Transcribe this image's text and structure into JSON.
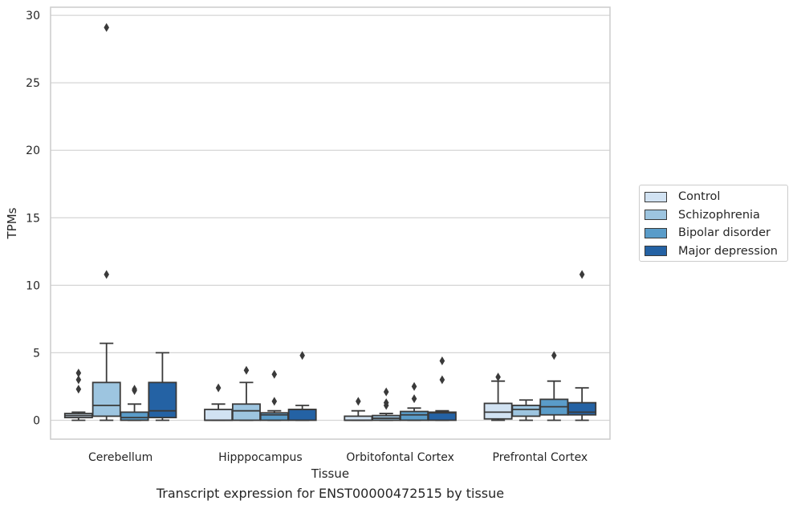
{
  "caption": "Transcript expression for ENST00000472515 by tissue",
  "colors": {
    "Control": "#d1e2f2",
    "Schizophrenia": "#9dc5e0",
    "Bipolar disorder": "#5a9cc9",
    "Major depression": "#2462a4",
    "grid": "#d5d5d5",
    "spine": "#cccccc",
    "line": "#3a3a3a"
  },
  "chart_data": {
    "type": "box",
    "xlabel": "Tissue",
    "ylabel": "TPMs",
    "ylim": [
      -1.4,
      30.6
    ],
    "yticks": [
      0,
      5,
      10,
      15,
      20,
      25,
      30
    ],
    "categories": [
      "Cerebellum",
      "Hipppocampus",
      "Orbitofontal Cortex",
      "Prefrontal Cortex"
    ],
    "grid": "horizontal",
    "legend_position": "right",
    "series": [
      {
        "name": "Control",
        "boxes": [
          {
            "category": "Cerebellum",
            "whisker_low": 0.0,
            "q1": 0.2,
            "median": 0.35,
            "q3": 0.5,
            "whisker_high": 0.6,
            "outliers": [
              2.3,
              3.0,
              3.5
            ]
          },
          {
            "category": "Hipppocampus",
            "whisker_low": 0.0,
            "q1": 0.0,
            "median": 0.0,
            "q3": 0.8,
            "whisker_high": 1.2,
            "outliers": [
              2.4
            ]
          },
          {
            "category": "Orbitofontal Cortex",
            "whisker_low": 0.0,
            "q1": 0.0,
            "median": 0.0,
            "q3": 0.3,
            "whisker_high": 0.7,
            "outliers": [
              1.4
            ]
          },
          {
            "category": "Prefrontal Cortex",
            "whisker_low": 0.0,
            "q1": 0.1,
            "median": 0.6,
            "q3": 1.25,
            "whisker_high": 2.9,
            "outliers": [
              3.2
            ]
          }
        ]
      },
      {
        "name": "Schizophrenia",
        "boxes": [
          {
            "category": "Cerebellum",
            "whisker_low": 0.0,
            "q1": 0.3,
            "median": 1.1,
            "q3": 2.8,
            "whisker_high": 5.7,
            "outliers": [
              10.8,
              29.1
            ]
          },
          {
            "category": "Hipppocampus",
            "whisker_low": 0.0,
            "q1": 0.0,
            "median": 0.7,
            "q3": 1.2,
            "whisker_high": 2.8,
            "outliers": [
              3.7
            ]
          },
          {
            "category": "Orbitofontal Cortex",
            "whisker_low": 0.0,
            "q1": 0.0,
            "median": 0.15,
            "q3": 0.35,
            "whisker_high": 0.5,
            "outliers": [
              1.1,
              1.3,
              2.1
            ]
          },
          {
            "category": "Prefrontal Cortex",
            "whisker_low": 0.0,
            "q1": 0.3,
            "median": 0.8,
            "q3": 1.1,
            "whisker_high": 1.5,
            "outliers": []
          }
        ]
      },
      {
        "name": "Bipolar disorder",
        "boxes": [
          {
            "category": "Cerebellum",
            "whisker_low": 0.0,
            "q1": 0.0,
            "median": 0.2,
            "q3": 0.6,
            "whisker_high": 1.2,
            "outliers": [
              2.2,
              2.3
            ]
          },
          {
            "category": "Hipppocampus",
            "whisker_low": 0.0,
            "q1": 0.0,
            "median": 0.4,
            "q3": 0.55,
            "whisker_high": 0.7,
            "outliers": [
              1.4,
              3.4
            ]
          },
          {
            "category": "Orbitofontal Cortex",
            "whisker_low": 0.0,
            "q1": 0.0,
            "median": 0.4,
            "q3": 0.65,
            "whisker_high": 0.9,
            "outliers": [
              1.6,
              2.5
            ]
          },
          {
            "category": "Prefrontal Cortex",
            "whisker_low": 0.0,
            "q1": 0.4,
            "median": 1.0,
            "q3": 1.55,
            "whisker_high": 2.9,
            "outliers": [
              4.8
            ]
          }
        ]
      },
      {
        "name": "Major depression",
        "boxes": [
          {
            "category": "Cerebellum",
            "whisker_low": 0.0,
            "q1": 0.2,
            "median": 0.7,
            "q3": 2.8,
            "whisker_high": 5.0,
            "outliers": []
          },
          {
            "category": "Hipppocampus",
            "whisker_low": 0.0,
            "q1": 0.0,
            "median": 0.8,
            "q3": 0.8,
            "whisker_high": 1.1,
            "outliers": [
              4.8
            ]
          },
          {
            "category": "Orbitofontal Cortex",
            "whisker_low": 0.0,
            "q1": 0.0,
            "median": 0.55,
            "q3": 0.6,
            "whisker_high": 0.7,
            "outliers": [
              3.0,
              4.4
            ]
          },
          {
            "category": "Prefrontal Cortex",
            "whisker_low": 0.0,
            "q1": 0.4,
            "median": 0.6,
            "q3": 1.3,
            "whisker_high": 2.4,
            "outliers": [
              10.8
            ]
          }
        ]
      }
    ]
  }
}
